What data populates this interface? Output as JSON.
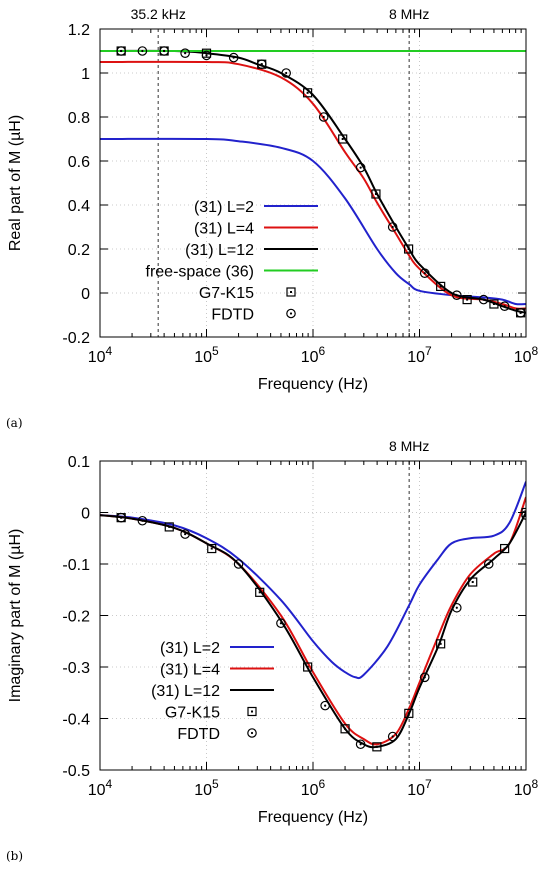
{
  "chart_data": [
    {
      "panel_label": "(a)",
      "type": "line",
      "xlabel": "Frequency (Hz)",
      "ylabel": "Real part of M (µH)",
      "xscale": "log",
      "xlim": [
        10000,
        100000000
      ],
      "ylim": [
        -0.2,
        1.2
      ],
      "grid": true,
      "legend_position": "bottom-right",
      "x_tick_labels": [
        "10^4",
        "10^5",
        "10^6",
        "10^7",
        "10^8"
      ],
      "y_ticks": [
        -0.2,
        0,
        0.2,
        0.4,
        0.6,
        0.8,
        1,
        1.2
      ],
      "y_tick_labels": [
        "-0.2",
        "0",
        "0.2",
        "0.4",
        "0.6",
        "0.8",
        "1",
        "1.2"
      ],
      "annotations": [
        {
          "x": 35200,
          "text": "35.2 kHz"
        },
        {
          "x": 8000000,
          "text": "8 MHz"
        }
      ],
      "series": [
        {
          "name": "(31) L=2",
          "color": "#2222cc",
          "style": "line",
          "x": [
            10000,
            100000,
            200000,
            500000,
            1000000,
            2000000,
            4000000,
            6000000,
            8000000,
            10000000,
            20000000,
            40000000,
            60000000,
            80000000,
            100000000
          ],
          "y": [
            0.7,
            0.7,
            0.69,
            0.66,
            0.6,
            0.43,
            0.2,
            0.09,
            0.04,
            0.01,
            -0.01,
            -0.02,
            -0.03,
            -0.05,
            -0.05
          ]
        },
        {
          "name": "(31) L=4",
          "color": "#dd1111",
          "style": "line",
          "x": [
            10000,
            100000,
            200000,
            500000,
            1000000,
            2000000,
            3000000,
            4000000,
            6000000,
            8000000,
            10000000,
            20000000,
            40000000,
            60000000,
            80000000,
            100000000
          ],
          "y": [
            1.05,
            1.05,
            1.04,
            0.98,
            0.86,
            0.64,
            0.52,
            0.41,
            0.27,
            0.17,
            0.11,
            -0.01,
            -0.03,
            -0.05,
            -0.07,
            -0.07
          ]
        },
        {
          "name": "(31) L=12",
          "color": "#000000",
          "style": "line",
          "x": [
            10000,
            50000,
            100000,
            200000,
            300000,
            500000,
            1000000,
            2000000,
            3000000,
            4000000,
            6000000,
            8000000,
            10000000,
            20000000,
            40000000,
            60000000,
            80000000,
            100000000
          ],
          "y": [
            1.1,
            1.1,
            1.09,
            1.07,
            1.04,
            1.0,
            0.9,
            0.7,
            0.57,
            0.45,
            0.3,
            0.2,
            0.13,
            0.0,
            -0.03,
            -0.06,
            -0.08,
            -0.09
          ]
        },
        {
          "name": "free-space (36)",
          "color": "#22cc22",
          "style": "line",
          "x": [
            10000,
            100000000
          ],
          "y": [
            1.1,
            1.1
          ]
        },
        {
          "name": "G7-K15",
          "color": "#000000",
          "style": "square",
          "x": [
            15800,
            40000,
            100000,
            330000,
            890000,
            1900000,
            3900000,
            7900000,
            15800000,
            28000000,
            50000000,
            89000000
          ],
          "y": [
            1.1,
            1.1,
            1.09,
            1.04,
            0.91,
            0.7,
            0.45,
            0.2,
            0.03,
            -0.03,
            -0.05,
            -0.09
          ]
        },
        {
          "name": "FDTD",
          "color": "#000000",
          "style": "circle",
          "x": [
            15800,
            25000,
            40000,
            63000,
            100000,
            180000,
            330000,
            560000,
            1260000,
            2800000,
            5600000,
            11200000,
            22400000,
            40000000,
            63000000,
            89000000
          ],
          "y": [
            1.1,
            1.1,
            1.1,
            1.09,
            1.08,
            1.07,
            1.04,
            1.0,
            0.8,
            0.57,
            0.3,
            0.09,
            -0.01,
            -0.03,
            -0.06,
            -0.09
          ]
        }
      ]
    },
    {
      "panel_label": "(b)",
      "type": "line",
      "xlabel": "Frequency (Hz)",
      "ylabel": "Imaginary part of M (µH)",
      "xscale": "log",
      "xlim": [
        10000,
        100000000
      ],
      "ylim": [
        -0.5,
        0.1
      ],
      "grid": true,
      "legend_position": "bottom-left",
      "x_tick_labels": [
        "10^4",
        "10^5",
        "10^6",
        "10^7",
        "10^8"
      ],
      "y_ticks": [
        -0.5,
        -0.4,
        -0.3,
        -0.2,
        -0.1,
        0,
        0.1
      ],
      "y_tick_labels": [
        "-0.5",
        "-0.4",
        "-0.3",
        "-0.2",
        "-0.1",
        "0",
        "0.1"
      ],
      "annotations": [
        {
          "x": 8000000,
          "text": "8 MHz"
        }
      ],
      "series": [
        {
          "name": "(31) L=2",
          "color": "#2222cc",
          "style": "line",
          "x": [
            10000,
            20000,
            50000,
            100000,
            200000,
            500000,
            1000000,
            1500000,
            2000000,
            2500000,
            3000000,
            5000000,
            8000000,
            10000000,
            15000000,
            20000000,
            30000000,
            50000000,
            70000000,
            100000000
          ],
          "y": [
            -0.005,
            -0.01,
            -0.025,
            -0.05,
            -0.09,
            -0.17,
            -0.25,
            -0.29,
            -0.31,
            -0.32,
            -0.315,
            -0.26,
            -0.18,
            -0.14,
            -0.09,
            -0.06,
            -0.05,
            -0.045,
            -0.02,
            0.06
          ]
        },
        {
          "name": "(31) L=4",
          "color": "#dd1111",
          "style": "line",
          "x": [
            10000,
            20000,
            50000,
            100000,
            200000,
            500000,
            1000000,
            2000000,
            3000000,
            4000000,
            6000000,
            8000000,
            10000000,
            15000000,
            20000000,
            30000000,
            50000000,
            70000000,
            100000000
          ],
          "y": [
            -0.005,
            -0.012,
            -0.03,
            -0.06,
            -0.1,
            -0.2,
            -0.31,
            -0.41,
            -0.44,
            -0.45,
            -0.43,
            -0.38,
            -0.33,
            -0.24,
            -0.18,
            -0.12,
            -0.08,
            -0.06,
            0.03
          ]
        },
        {
          "name": "(31) L=12",
          "color": "#000000",
          "style": "line",
          "x": [
            10000,
            20000,
            50000,
            100000,
            200000,
            500000,
            1000000,
            2000000,
            3000000,
            4000000,
            6000000,
            8000000,
            10000000,
            15000000,
            20000000,
            30000000,
            50000000,
            70000000,
            100000000
          ],
          "y": [
            -0.005,
            -0.012,
            -0.03,
            -0.06,
            -0.1,
            -0.21,
            -0.32,
            -0.42,
            -0.45,
            -0.455,
            -0.44,
            -0.39,
            -0.34,
            -0.26,
            -0.19,
            -0.13,
            -0.09,
            -0.06,
            0.0
          ]
        },
        {
          "name": "G7-K15",
          "color": "#000000",
          "style": "square",
          "x": [
            15800,
            44700,
            112000,
            316000,
            891000,
            2000000,
            3980000,
            7940000,
            15800000,
            31600000,
            63000000,
            100000000
          ],
          "y": [
            -0.01,
            -0.028,
            -0.07,
            -0.155,
            -0.3,
            -0.42,
            -0.455,
            -0.39,
            -0.255,
            -0.135,
            -0.07,
            0.0
          ]
        },
        {
          "name": "FDTD",
          "color": "#000000",
          "style": "circle",
          "x": [
            15800,
            25000,
            63000,
            200000,
            500000,
            1300000,
            2800000,
            5600000,
            11200000,
            22400000,
            44700000,
            100000000
          ],
          "y": [
            -0.01,
            -0.016,
            -0.042,
            -0.1,
            -0.215,
            -0.375,
            -0.45,
            -0.435,
            -0.32,
            -0.185,
            -0.1,
            -0.005
          ]
        }
      ]
    }
  ]
}
